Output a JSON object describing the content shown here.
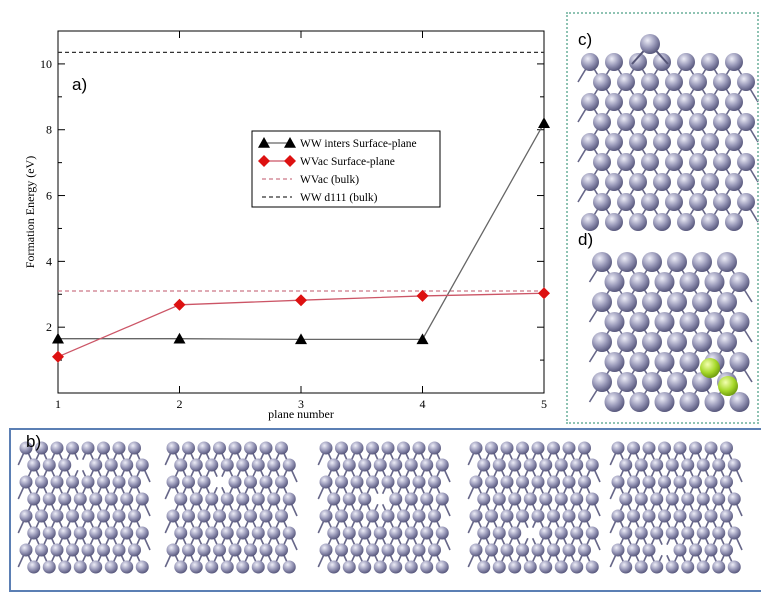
{
  "panel_labels": {
    "a": "a)",
    "b": "b)",
    "c": "c)",
    "d": "d)"
  },
  "chart_data": {
    "type": "line",
    "title": "",
    "xlabel": "plane number",
    "ylabel": "Formation Energy (eV)",
    "xlim": [
      1,
      5
    ],
    "ylim": [
      0,
      11
    ],
    "x_ticks": [
      1,
      2,
      3,
      4,
      5
    ],
    "y_ticks": [
      2,
      4,
      6,
      8,
      10
    ],
    "legend_position": "center-right",
    "series": [
      {
        "name": "WW inters Surface-plane",
        "kind": "line-markers",
        "marker": "triangle",
        "color": "#000000",
        "line_color": "#666666",
        "x": [
          1,
          2,
          3,
          4,
          5
        ],
        "y": [
          1.65,
          1.65,
          1.63,
          1.63,
          8.2
        ]
      },
      {
        "name": "WVac Surface-plane",
        "kind": "line-markers",
        "marker": "diamond",
        "color": "#dd1111",
        "line_color": "#cc5566",
        "x": [
          1,
          2,
          3,
          4,
          5
        ],
        "y": [
          1.1,
          2.68,
          2.82,
          2.95,
          3.03
        ]
      },
      {
        "name": "WVac (bulk)",
        "kind": "hline-dashed",
        "color": "#cc7788",
        "y": 3.1
      },
      {
        "name": "WW d111 (bulk)",
        "kind": "hline-dashed",
        "color": "#333333",
        "y": 10.35
      }
    ]
  }
}
